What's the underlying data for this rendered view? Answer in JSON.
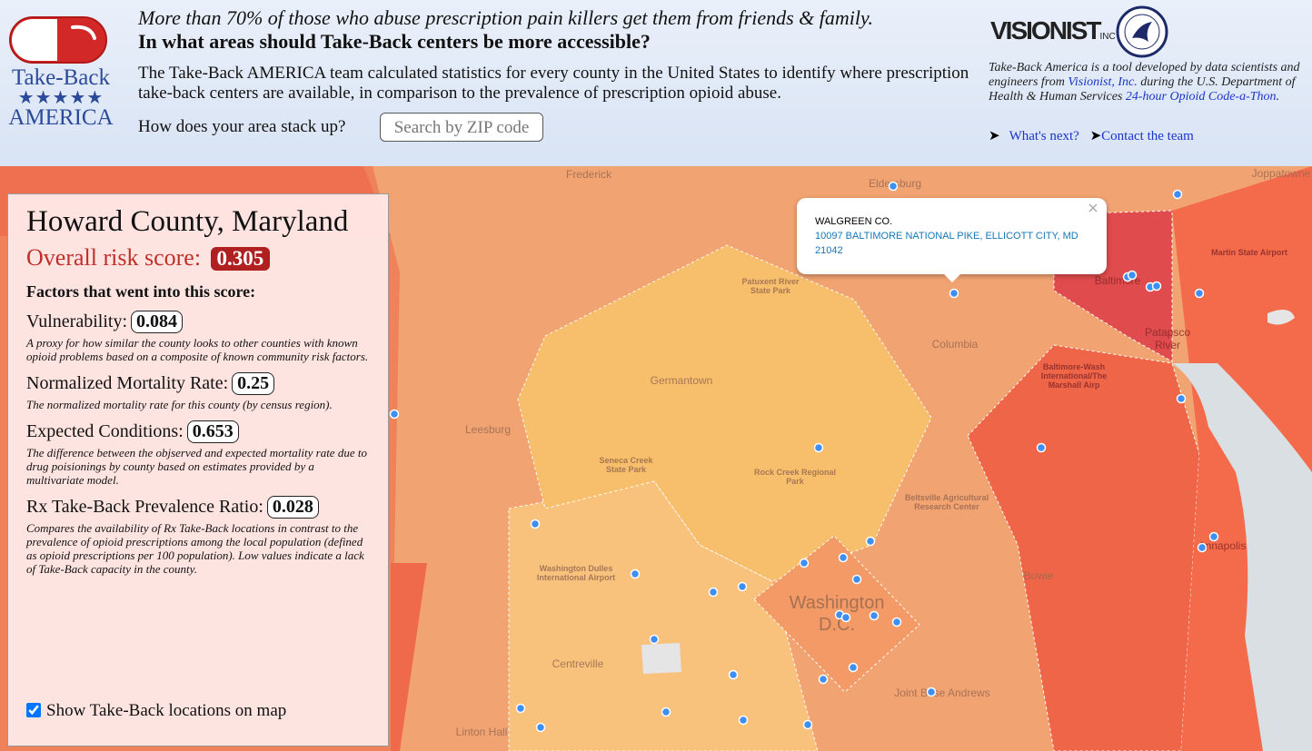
{
  "header": {
    "logo": {
      "line1": "Take-Back",
      "stars": "★★★★★",
      "line2": "AMERICA"
    },
    "tagline": "More than 70% of those who abuse prescription pain killers get them from friends & family.",
    "question": "In what areas should Take-Back centers be more accessible?",
    "description": "The Take-Back AMERICA team calculated statistics for every county in the United States to identify where prescription take-back centers are available, in comparison to the prevalence of prescription opioid abuse.",
    "prompt": "How does your area stack up?",
    "search_placeholder": "Search by ZIP code",
    "partner": {
      "name": "VISIONIST",
      "suffix": "INC"
    },
    "about": {
      "text1": "Take-Back America is a tool developed by data scientists and engineers from ",
      "link1": "Visionist, Inc.",
      "text2": " during the U.S. Department of Health & Human Services ",
      "link2": "24-hour Opioid Code-a-Thon",
      "text3": "."
    },
    "links": [
      "What's next?",
      "Contact the team"
    ]
  },
  "panel": {
    "title": "Howard County, Maryland",
    "risk_label": "Overall risk score:",
    "risk_score": 0.305,
    "factors_heading": "Factors that went into this score:",
    "factors": [
      {
        "name": "Vulnerability:",
        "value": 0.084,
        "description": "A proxy for how similar the county looks to other counties with known opioid problems based on a composite of known community risk factors."
      },
      {
        "name": "Normalized Mortality Rate:",
        "value": 0.25,
        "description": "The normalized mortality rate for this county (by census region)."
      },
      {
        "name": "Expected Conditions:",
        "value": 0.653,
        "description": "The difference between the objserved and expected mortality rate due to drug poisionings by county based on estimates provided by a multivariate model."
      },
      {
        "name": "Rx Take-Back Prevalence Ratio:",
        "value": 0.028,
        "description": "Compares the availability of Rx Take-Back locations in contrast to the prevalence of opioid prescriptions among the local population (defined as opioid prescriptions per 100 population). Low values indicate a lack of Take-Back capacity in the county."
      }
    ],
    "checkbox_label": "Show Take-Back locations on map"
  },
  "popup": {
    "name": "WALGREEN CO.",
    "address": "10097 BALTIMORE NATIONAL PIKE, ELLICOTT CITY, MD 21042"
  },
  "map_labels": [
    {
      "lines": [
        "Frederick"
      ]
    },
    {
      "lines": [
        "Eldersburg"
      ]
    },
    {
      "lines": [
        "Joppatowne"
      ]
    },
    {
      "lines": [
        "Patuxent River",
        "State Park"
      ]
    },
    {
      "lines": [
        "Columbia"
      ]
    },
    {
      "lines": [
        "Germantown"
      ]
    },
    {
      "lines": [
        "Leesburg"
      ]
    },
    {
      "lines": [
        "Seneca Creek",
        "State Park"
      ]
    },
    {
      "lines": [
        "Rock Creek Regional",
        "Park"
      ]
    },
    {
      "lines": [
        "Beltsville Agricultural",
        "Research Center"
      ]
    },
    {
      "lines": [
        "Washington Dulles",
        "International Airport"
      ]
    },
    {
      "lines": [
        "Bowie"
      ]
    },
    {
      "lines": [
        "Washington",
        "D.C."
      ]
    },
    {
      "lines": [
        "Centreville"
      ]
    },
    {
      "lines": [
        "Joint Base Andrews"
      ]
    },
    {
      "lines": [
        "Linton Hall"
      ]
    },
    {
      "lines": [
        "Baltimore"
      ]
    },
    {
      "lines": [
        "Patapsco",
        "River"
      ]
    },
    {
      "lines": [
        "Martin State Airport"
      ]
    },
    {
      "lines": [
        "Baltimore-Wash",
        "International/The",
        "Marshall Airp"
      ]
    },
    {
      "lines": [
        "Annapolis"
      ]
    }
  ]
}
